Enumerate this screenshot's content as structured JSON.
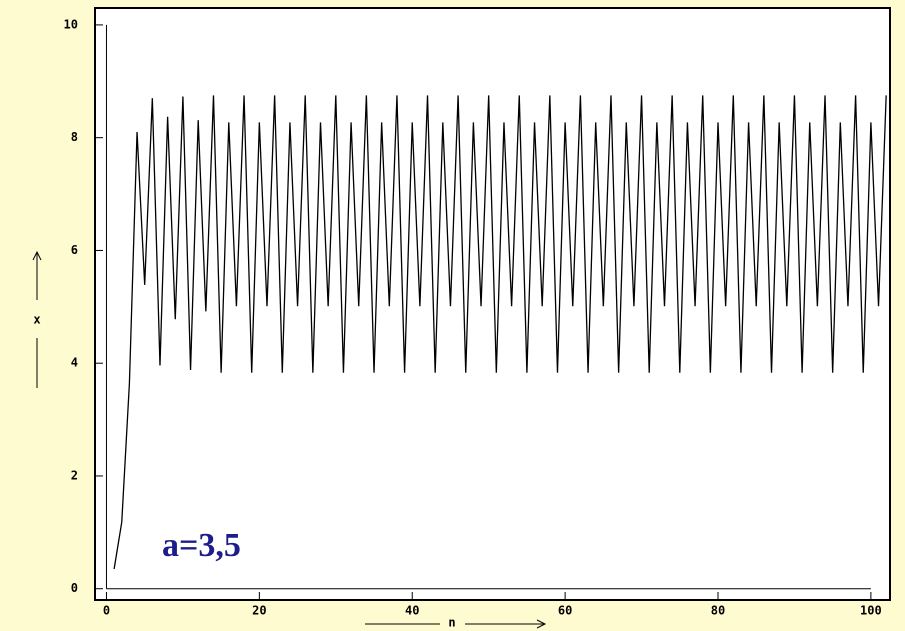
{
  "chart_data": {
    "type": "line",
    "annotation": "a=3,5",
    "xlabel": "n",
    "ylabel": "x",
    "x": [
      1,
      2,
      3,
      4,
      5,
      6,
      7,
      8,
      9,
      10,
      11,
      12,
      13,
      14,
      15,
      16,
      17,
      18,
      19,
      20,
      21,
      22,
      23,
      24,
      25,
      26,
      27,
      28,
      29,
      30,
      31,
      32,
      33,
      34,
      35,
      36,
      37,
      38,
      39,
      40,
      41,
      42,
      43,
      44,
      45,
      46,
      47,
      48,
      49,
      50,
      51,
      52,
      53,
      54,
      55,
      56,
      57,
      58,
      59,
      60,
      61,
      62,
      63,
      64,
      65,
      66,
      67,
      68,
      69,
      70,
      71,
      72,
      73,
      74,
      75,
      76,
      77,
      78,
      79,
      80,
      81,
      82,
      83,
      84,
      85,
      86,
      87,
      88,
      89,
      90,
      91,
      92,
      93,
      94,
      95,
      96,
      97,
      98,
      99,
      100,
      101,
      102
    ],
    "series": [
      {
        "name": "x",
        "color": "#000000",
        "values": [
          0.35,
          1.18,
          3.64,
          8.1,
          5.39,
          8.7,
          3.96,
          8.37,
          4.78,
          8.73,
          3.88,
          8.31,
          4.92,
          8.75,
          3.83,
          8.27,
          5.01,
          8.75,
          3.83,
          8.27,
          5.01,
          8.75,
          3.83,
          8.27,
          5.01,
          8.75,
          3.83,
          8.27,
          5.01,
          8.75,
          3.83,
          8.27,
          5.01,
          8.75,
          3.83,
          8.27,
          5.01,
          8.75,
          3.83,
          8.27,
          5.01,
          8.75,
          3.83,
          8.27,
          5.01,
          8.75,
          3.83,
          8.27,
          5.01,
          8.75,
          3.83,
          8.27,
          5.01,
          8.75,
          3.83,
          8.27,
          5.01,
          8.75,
          3.83,
          8.27,
          5.01,
          8.75,
          3.83,
          8.27,
          5.01,
          8.75,
          3.83,
          8.27,
          5.01,
          8.75,
          3.83,
          8.27,
          5.01,
          8.75,
          3.83,
          8.27,
          5.01,
          8.75,
          3.83,
          8.27,
          5.01,
          8.75,
          3.83,
          8.27,
          5.01,
          8.75,
          3.83,
          8.27,
          5.01,
          8.75,
          3.83,
          8.27,
          5.01,
          8.75,
          3.83,
          8.27,
          5.01,
          8.75,
          3.83,
          8.27,
          5.01,
          8.75
        ]
      }
    ],
    "xlim": [
      -1.5,
      102.5
    ],
    "ylim": [
      -0.2,
      10.3
    ],
    "xticks": [
      0,
      20,
      40,
      60,
      80,
      100
    ],
    "yticks": [
      0,
      2,
      4,
      6,
      8,
      10
    ]
  }
}
